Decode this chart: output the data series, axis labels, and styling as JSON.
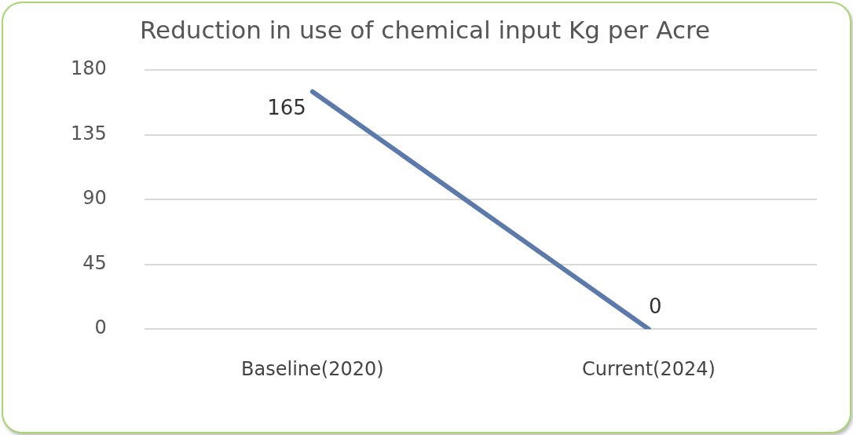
{
  "chart_data": {
    "type": "line",
    "title": "Reduction in use of chemical input Kg per Acre",
    "categories": [
      "Baseline(2020)",
      "Current(2024)"
    ],
    "series": [
      {
        "color": "#5b79aa",
        "values": [
          165,
          0
        ]
      }
    ],
    "ylim": [
      0,
      180
    ],
    "yticks": [
      0,
      45,
      90,
      135,
      180
    ],
    "grid": "y",
    "legend": false,
    "marker": "none",
    "data_labels": true
  }
}
